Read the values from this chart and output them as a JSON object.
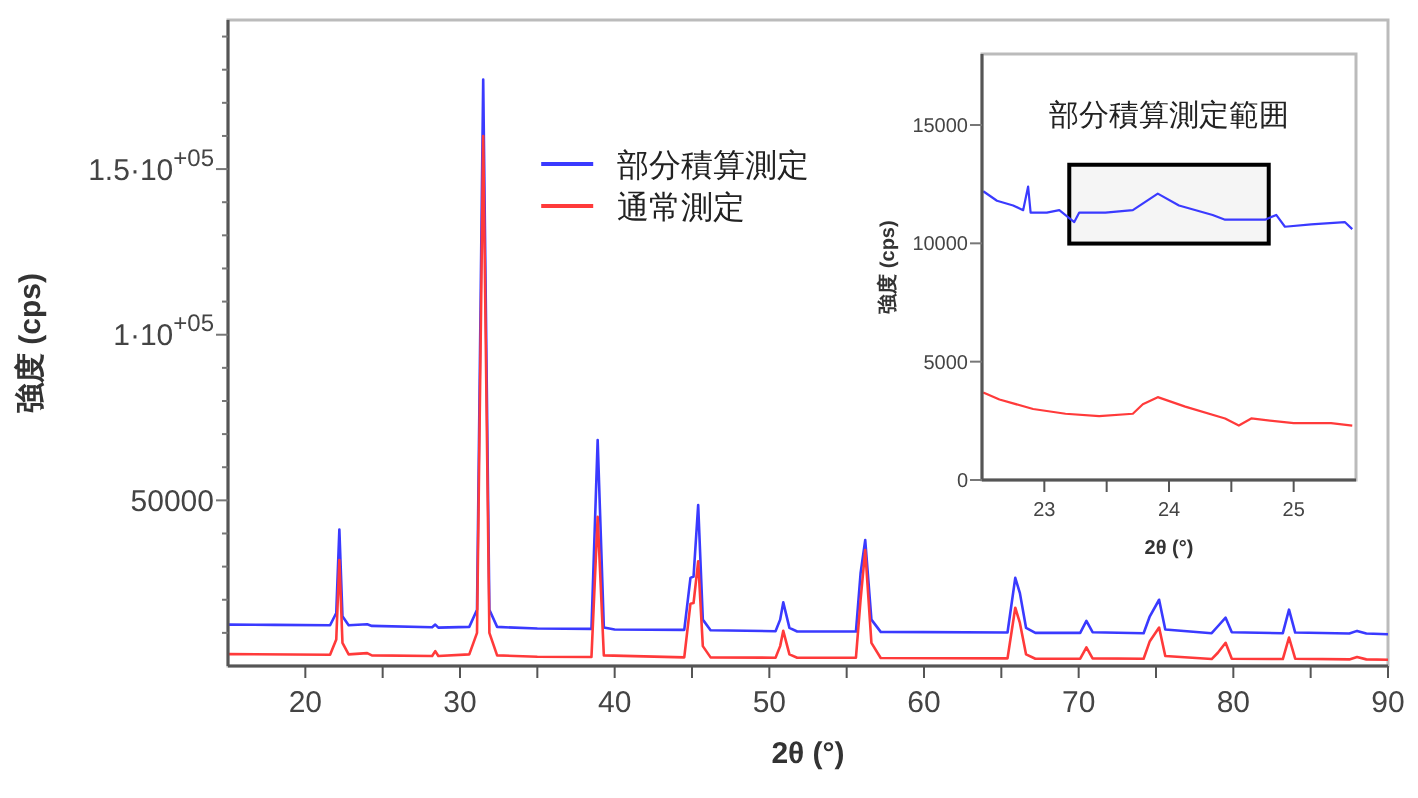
{
  "chart_data": [
    {
      "type": "line",
      "xlabel": "2θ (°)",
      "ylabel": "強度 (cps)",
      "xlim": [
        15,
        90
      ],
      "ylim": [
        0,
        195000
      ],
      "xticks": [
        20,
        {
          "value": 25,
          "label": null
        },
        30,
        {
          "value": 35,
          "label": null
        },
        40,
        {
          "value": 45,
          "label": null
        },
        50,
        {
          "value": 55,
          "label": null
        },
        60,
        {
          "value": 65,
          "label": null
        },
        70,
        {
          "value": 75,
          "label": null
        },
        80,
        {
          "value": 85,
          "label": null
        },
        90
      ],
      "yticks": [
        {
          "value": 10000,
          "label": null
        },
        {
          "value": 20000,
          "label": null
        },
        {
          "value": 30000,
          "label": null
        },
        {
          "value": 40000,
          "label": null
        },
        50000,
        {
          "value": 60000,
          "label": null
        },
        {
          "value": 70000,
          "label": null
        },
        {
          "value": 80000,
          "label": null
        },
        {
          "value": 90000,
          "label": null
        },
        {
          "value": 100000,
          "label": "1·10$^{+05}$"
        },
        {
          "value": 110000,
          "label": null
        },
        {
          "value": 120000,
          "label": null
        },
        {
          "value": 130000,
          "label": null
        },
        {
          "value": 140000,
          "label": null
        },
        {
          "value": 150000,
          "label": "1.5·10$^{+05}$"
        },
        {
          "value": 160000,
          "label": null
        },
        {
          "value": 170000,
          "label": null
        },
        {
          "value": 180000,
          "label": null
        },
        {
          "value": 190000,
          "label": null
        }
      ],
      "legend": "top",
      "series": [
        {
          "name": "部分積算測定",
          "color": "#3a3aff",
          "x": [
            15,
            18,
            21.6,
            22.0,
            22.2,
            22.4,
            22.8,
            24.0,
            24.3,
            28.2,
            28.4,
            28.6,
            30.6,
            31.1,
            31.5,
            31.9,
            32.4,
            35,
            38.5,
            38.9,
            39.3,
            40,
            44.5,
            44.9,
            45.1,
            45.4,
            45.7,
            46.2,
            50.4,
            50.7,
            50.9,
            51.3,
            51.8,
            55.6,
            55.9,
            56.2,
            56.6,
            57.2,
            65.4,
            65.9,
            66.2,
            66.6,
            67.2,
            70.1,
            70.5,
            70.9,
            74.2,
            74.6,
            75.2,
            75.6,
            78.6,
            79.0,
            79.5,
            79.9,
            83.2,
            83.6,
            84.0,
            87.5,
            88.0,
            88.6,
            90
          ],
          "values": [
            12500,
            12400,
            12300,
            16000,
            41200,
            15000,
            12300,
            12600,
            12100,
            11700,
            12500,
            11600,
            11800,
            17000,
            177000,
            17000,
            11800,
            11300,
            11200,
            68200,
            11600,
            11000,
            10900,
            26600,
            27000,
            48600,
            14000,
            10800,
            10500,
            14000,
            19200,
            11500,
            10400,
            10400,
            28000,
            38000,
            14000,
            10300,
            10100,
            26600,
            22000,
            11500,
            10000,
            10000,
            13600,
            10200,
            9900,
            15000,
            20000,
            11000,
            9900,
            12000,
            14600,
            10200,
            9900,
            17000,
            10100,
            9800,
            10600,
            9800,
            9600
          ]
        },
        {
          "name": "通常測定",
          "color": "#ff3a3a",
          "x": [
            15,
            21.6,
            22.0,
            22.2,
            22.4,
            22.8,
            24.0,
            24.3,
            28.2,
            28.4,
            28.6,
            30.6,
            31.1,
            31.5,
            31.9,
            32.4,
            35,
            38.5,
            38.9,
            39.3,
            44.5,
            44.9,
            45.1,
            45.4,
            45.7,
            46.2,
            50.4,
            50.7,
            50.9,
            51.3,
            51.8,
            55.6,
            55.9,
            56.2,
            56.6,
            57.2,
            65.4,
            65.9,
            66.2,
            66.6,
            67.2,
            70.1,
            70.5,
            70.9,
            74.2,
            74.6,
            75.2,
            75.6,
            78.6,
            79.0,
            79.5,
            79.9,
            83.2,
            83.6,
            84.0,
            87.5,
            88.0,
            88.6,
            90
          ],
          "values": [
            3600,
            3400,
            8000,
            32000,
            7000,
            3500,
            3900,
            3200,
            3000,
            4500,
            3000,
            3500,
            10000,
            160000,
            10000,
            3200,
            2800,
            2700,
            45000,
            3200,
            2600,
            18800,
            19000,
            31600,
            6000,
            2600,
            2500,
            6000,
            10600,
            3500,
            2500,
            2500,
            20000,
            35000,
            7000,
            2400,
            2300,
            17600,
            13000,
            3500,
            2200,
            2200,
            5600,
            2300,
            2200,
            7500,
            11600,
            3000,
            2100,
            4000,
            7000,
            2200,
            2100,
            8600,
            2200,
            2000,
            2700,
            2000,
            1900
          ]
        }
      ]
    },
    {
      "type": "line",
      "xlabel": "2θ (°)",
      "ylabel": "強度 (cps)",
      "xlim": [
        22.5,
        25.5
      ],
      "ylim": [
        0,
        18000
      ],
      "xticks": [
        23,
        {
          "value": 23.5,
          "label": null
        },
        24,
        {
          "value": 24.5,
          "label": null
        },
        25
      ],
      "yticks": [
        0,
        5000,
        10000,
        15000
      ],
      "bands": [
        {
          "axis": "x",
          "from": 23.2,
          "to": 24.8,
          "label": "部分積算測定範囲",
          "color": "#000000"
        }
      ],
      "series": [
        {
          "color": "#3a3aff",
          "x": [
            22.51,
            22.62,
            22.75,
            22.83,
            22.87,
            22.89,
            23.02,
            23.12,
            23.24,
            23.28,
            23.49,
            23.71,
            23.91,
            24.08,
            24.35,
            24.45,
            24.77,
            24.86,
            24.93,
            25.14,
            25.41,
            25.47
          ],
          "values": [
            12200,
            11800,
            11600,
            11400,
            12400,
            11300,
            11300,
            11400,
            10900,
            11300,
            11300,
            11400,
            12100,
            11600,
            11200,
            11000,
            11000,
            11200,
            10700,
            10800,
            10900,
            10600
          ]
        },
        {
          "color": "#ff3a3a",
          "x": [
            22.51,
            22.64,
            22.91,
            23.17,
            23.44,
            23.71,
            23.79,
            23.91,
            24.13,
            24.45,
            24.56,
            24.66,
            25.0,
            25.3,
            25.47
          ],
          "values": [
            3700,
            3400,
            3000,
            2800,
            2700,
            2800,
            3200,
            3500,
            3100,
            2600,
            2300,
            2600,
            2400,
            2400,
            2300
          ]
        }
      ]
    }
  ]
}
